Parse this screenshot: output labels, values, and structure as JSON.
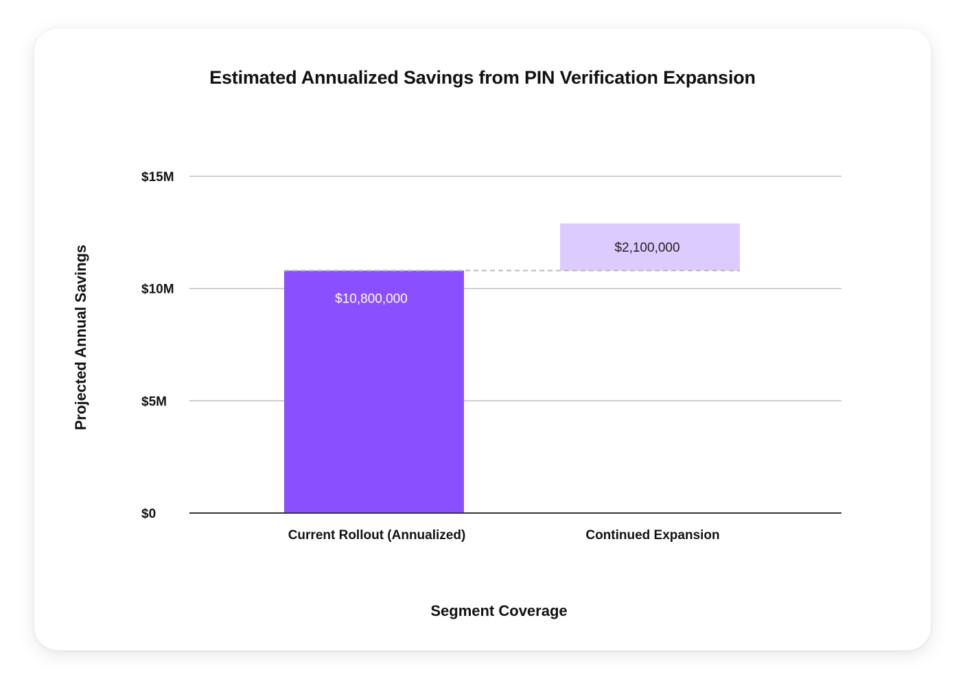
{
  "colors": {
    "base_bar": "#8A50FF",
    "increment_bar": "#DCCBFF",
    "gridline": "#BDBDBD",
    "baseline": "#333333",
    "connector": "#B8B8B8",
    "text": "#111111"
  },
  "chart_data": {
    "type": "bar",
    "variant": "waterfall",
    "title": "Estimated Annualized Savings from PIN Verification Expansion",
    "xlabel": "Segment Coverage",
    "ylabel": "Projected Annual Savings",
    "categories": [
      "Current Rollout (Annualized)",
      "Continued Expansion"
    ],
    "values": [
      10800000,
      2100000
    ],
    "bar_starts": [
      0,
      10800000
    ],
    "data_labels": [
      "$10,800,000",
      "$2,100,000"
    ],
    "ylim": [
      0,
      15000000
    ],
    "yticks": [
      0,
      5000000,
      10000000,
      15000000
    ],
    "ytick_labels": [
      "$0",
      "$5M",
      "$10M",
      "$15M"
    ],
    "grid": true,
    "legend": "none"
  }
}
